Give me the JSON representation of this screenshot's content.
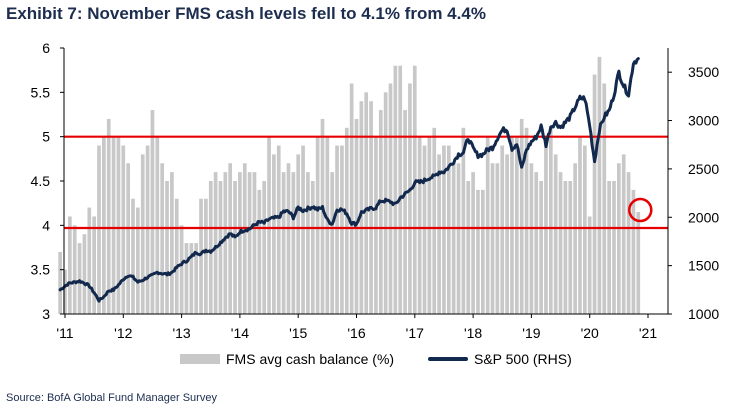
{
  "title": "Exhibit 7: November FMS cash levels fell to 4.1% from 4.4%",
  "source": "Source: BofA Global Fund Manager Survey",
  "colors": {
    "bars": "#c8c8c8",
    "line": "#12284c",
    "reference": "#e60000",
    "title": "#1c2d4f"
  },
  "chart_data": {
    "type": "bar",
    "grid": false,
    "legend_position": "bottom-center",
    "x_tick_labels": [
      "'11",
      "'12",
      "'13",
      "'14",
      "'15",
      "'16",
      "'17",
      "'18",
      "'19",
      "'20",
      "'21"
    ],
    "y_left": {
      "min": 3,
      "max": 6,
      "ticks": [
        "3",
        "3.5",
        "4",
        "4.5",
        "5",
        "5.5",
        "6"
      ]
    },
    "y_right": {
      "min": 1000,
      "max": 3750,
      "ticks": [
        "1000",
        "1500",
        "2000",
        "2500",
        "3000",
        "3500"
      ]
    },
    "reference_lines": [
      5.0,
      3.97
    ],
    "highlight_circle": {
      "x": "2020-11",
      "y": 4.15
    },
    "series": [
      {
        "name": "FMS avg cash balance (%)",
        "type": "bar",
        "axis": "left",
        "x_start": "2010-12",
        "values": [
          3.7,
          3.5,
          4.1,
          4.0,
          3.8,
          3.9,
          4.2,
          4.1,
          4.9,
          5.0,
          5.2,
          5.0,
          5.0,
          4.9,
          4.7,
          4.3,
          4.2,
          4.8,
          4.9,
          5.3,
          5.0,
          4.7,
          4.5,
          4.6,
          4.3,
          4.0,
          3.8,
          3.8,
          3.8,
          4.3,
          4.3,
          4.5,
          4.6,
          4.5,
          4.6,
          4.7,
          4.5,
          4.6,
          4.7,
          4.6,
          4.6,
          4.4,
          4.5,
          5.0,
          4.8,
          4.9,
          4.6,
          4.7,
          4.6,
          4.8,
          4.9,
          4.6,
          4.5,
          5.0,
          5.2,
          5.0,
          4.6,
          4.9,
          4.9,
          5.1,
          5.6,
          5.2,
          5.4,
          5.5,
          5.4,
          5.0,
          5.3,
          5.5,
          5.6,
          5.8,
          5.8,
          5.3,
          5.6,
          5.8,
          5.0,
          4.9,
          5.0,
          5.1,
          4.8,
          4.9,
          4.9,
          4.7,
          4.7,
          5.1,
          4.5,
          4.6,
          4.4,
          4.4,
          5.0,
          4.7,
          4.7,
          4.9,
          4.8,
          5.0,
          5.0,
          5.2,
          5.1,
          4.7,
          4.6,
          4.5,
          5.0,
          5.1,
          4.8,
          4.6,
          4.5,
          4.5,
          4.7,
          5.0,
          4.9,
          4.1,
          5.7,
          5.9,
          5.6,
          4.5,
          4.5,
          4.7,
          4.8,
          4.6,
          4.4,
          4.15
        ]
      },
      {
        "name": "S&P 500 (RHS)",
        "type": "line",
        "axis": "right",
        "x_start": "2010-12",
        "values": [
          1250,
          1290,
          1320,
          1330,
          1340,
          1320,
          1290,
          1220,
          1140,
          1180,
          1240,
          1250,
          1300,
          1360,
          1400,
          1380,
          1330,
          1350,
          1380,
          1400,
          1430,
          1420,
          1410,
          1430,
          1480,
          1520,
          1550,
          1590,
          1640,
          1620,
          1660,
          1650,
          1690,
          1740,
          1790,
          1830,
          1790,
          1850,
          1870,
          1880,
          1920,
          1950,
          1940,
          1980,
          1990,
          2000,
          2060,
          2060,
          2000,
          2100,
          2070,
          2090,
          2110,
          2080,
          2100,
          1970,
          1930,
          2080,
          2080,
          2040,
          1940,
          1930,
          2050,
          2070,
          2090,
          2100,
          2170,
          2170,
          2160,
          2130,
          2200,
          2240,
          2280,
          2360,
          2360,
          2380,
          2410,
          2420,
          2470,
          2470,
          2520,
          2580,
          2650,
          2670,
          2820,
          2710,
          2640,
          2650,
          2700,
          2720,
          2820,
          2900,
          2910,
          2710,
          2760,
          2500,
          2700,
          2780,
          2830,
          2940,
          2750,
          2940,
          2980,
          2930,
          2980,
          3040,
          3140,
          3230,
          3230,
          2950,
          2580,
          2910,
          3040,
          3100,
          3270,
          3500,
          3360,
          3270,
          3600,
          3640
        ]
      }
    ]
  }
}
